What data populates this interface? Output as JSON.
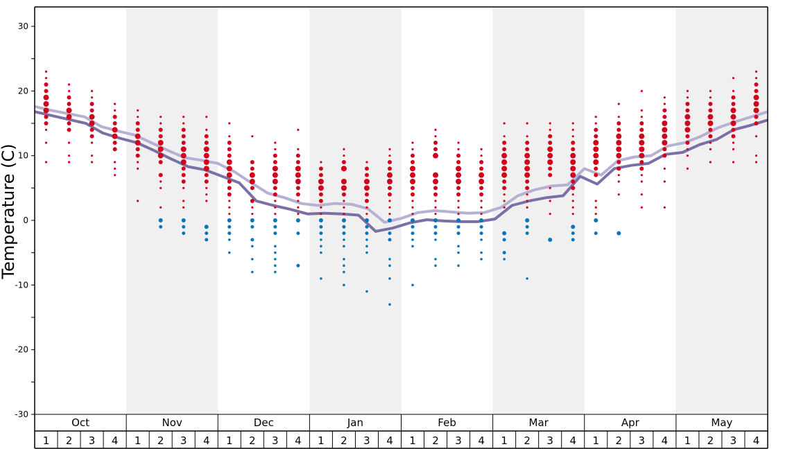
{
  "chart_data": {
    "type": "scatter",
    "ylabel": "Temperature (C)",
    "ylim": [
      -30,
      30
    ],
    "y_ticks": [
      "30",
      "20",
      "10",
      "0",
      "-10",
      "-20",
      "-30"
    ],
    "months": [
      "Oct",
      "Nov",
      "Dec",
      "Jan",
      "Feb",
      "Mar",
      "Apr",
      "May"
    ],
    "weeks": [
      "1",
      "2",
      "3",
      "4"
    ],
    "colors": {
      "warm": "#d0021b",
      "cold": "#0a74b8",
      "line_dark": "#7b6fa6",
      "line_light": "#b6b0d2",
      "band": "#f0f0f0"
    },
    "series": [
      {
        "color": "#b6b0d2",
        "values": [
          17.6,
          17.0,
          16.5,
          16.0,
          14.5,
          13.8,
          13.2,
          12.0,
          10.8,
          9.7,
          9.3,
          8.8,
          7.5,
          5.8,
          4.2,
          3.5,
          2.6,
          2.3,
          2.6,
          2.5,
          1.8,
          -0.3,
          0.3,
          1.2,
          1.5,
          1.3,
          1.1,
          1.2,
          2.0,
          3.8,
          4.7,
          5.3,
          5.5,
          8.0,
          7.0,
          9.2,
          9.8,
          10.0,
          11.5,
          12.0,
          13.0,
          14.3,
          15.2,
          16.0,
          16.8
        ]
      },
      {
        "color": "#7b6fa6",
        "values": [
          16.8,
          16.2,
          15.6,
          15.0,
          13.5,
          12.7,
          12.0,
          10.8,
          9.5,
          8.3,
          7.8,
          6.8,
          5.8,
          3.0,
          2.3,
          1.7,
          1.0,
          1.1,
          1.0,
          0.8,
          -1.7,
          -1.2,
          -0.4,
          0.1,
          -0.1,
          -0.2,
          -0.2,
          0.2,
          2.3,
          3.0,
          3.5,
          3.8,
          6.8,
          5.6,
          8.0,
          8.5,
          8.8,
          10.2,
          10.5,
          11.7,
          12.5,
          14.0,
          14.7,
          15.5
        ]
      }
    ],
    "dots_warm": [
      [
        9,
        12,
        14,
        15,
        16,
        17,
        18,
        19,
        20,
        21,
        22,
        23
      ],
      [
        9,
        10,
        12,
        14,
        15,
        16,
        17,
        18,
        19,
        20,
        21
      ],
      [
        9,
        10,
        12,
        13,
        14,
        15,
        16,
        17,
        18,
        19,
        20
      ],
      [
        7,
        8,
        9,
        11,
        12,
        13,
        14,
        15,
        16,
        17,
        18
      ],
      [
        3,
        8,
        9,
        10,
        11,
        12,
        13,
        14,
        15,
        16,
        17
      ],
      [
        2,
        5,
        6,
        7,
        9,
        10,
        11,
        12,
        13,
        14,
        15,
        16
      ],
      [
        2,
        3,
        5,
        6,
        7,
        8,
        9,
        10,
        11,
        12,
        13,
        14,
        15,
        16
      ],
      [
        3,
        4,
        5,
        6,
        7,
        8,
        9,
        10,
        11,
        12,
        13,
        14,
        16
      ],
      [
        1,
        2,
        3,
        4,
        5,
        6,
        7,
        8,
        9,
        10,
        11,
        12,
        13,
        15
      ],
      [
        1,
        2,
        3,
        5,
        6,
        7,
        8,
        9,
        13
      ],
      [
        1,
        2,
        3,
        4,
        5,
        6,
        7,
        8,
        9,
        10,
        11,
        12
      ],
      [
        1,
        2,
        3,
        4,
        5,
        6,
        7,
        8,
        9,
        10,
        11,
        14
      ],
      [
        1,
        2,
        3,
        4,
        5,
        6,
        7,
        8,
        9
      ],
      [
        1,
        2,
        3,
        4,
        5,
        6,
        8,
        9,
        10,
        11
      ],
      [
        1,
        2,
        3,
        4,
        5,
        6,
        7,
        8,
        9
      ],
      [
        1,
        2,
        3,
        4,
        5,
        6,
        7,
        8,
        9,
        10,
        11
      ],
      [
        1,
        2,
        3,
        4,
        5,
        6,
        7,
        8,
        9,
        10,
        11,
        12
      ],
      [
        1,
        2,
        3,
        4,
        5,
        6,
        7,
        10,
        11,
        12,
        13,
        14
      ],
      [
        1,
        2,
        3,
        4,
        5,
        6,
        7,
        8,
        9,
        10,
        11,
        12
      ],
      [
        1,
        2,
        3,
        4,
        5,
        6,
        7,
        8,
        9,
        10,
        11
      ],
      [
        2,
        3,
        4,
        5,
        6,
        7,
        8,
        9,
        10,
        11,
        12,
        13,
        15
      ],
      [
        2,
        3,
        4,
        5,
        6,
        7,
        8,
        9,
        10,
        11,
        12,
        13,
        15
      ],
      [
        1,
        3,
        5,
        7,
        8,
        9,
        10,
        11,
        12,
        13,
        14,
        15
      ],
      [
        1,
        2,
        3,
        4,
        5,
        6,
        7,
        8,
        9,
        10,
        11,
        12,
        13,
        14,
        15
      ],
      [
        1,
        2,
        3,
        7,
        8,
        9,
        10,
        11,
        12,
        13,
        14,
        15,
        16
      ],
      [
        4,
        6,
        7,
        8,
        9,
        10,
        11,
        12,
        13,
        14,
        15,
        16,
        18
      ],
      [
        2,
        4,
        6,
        7,
        8,
        9,
        10,
        11,
        12,
        13,
        14,
        15,
        16,
        17,
        20
      ],
      [
        2,
        6,
        8,
        10,
        11,
        12,
        13,
        14,
        15,
        16,
        17,
        18,
        19
      ],
      [
        8,
        10,
        11,
        12,
        13,
        14,
        15,
        16,
        17,
        18,
        19,
        20
      ],
      [
        9,
        11,
        12,
        13,
        14,
        15,
        16,
        17,
        18,
        19,
        20
      ],
      [
        9,
        11,
        12,
        13,
        14,
        15,
        16,
        17,
        18,
        19,
        20,
        22
      ],
      [
        9,
        10,
        13,
        15,
        16,
        17,
        18,
        19,
        20,
        21,
        22,
        23
      ]
    ],
    "dots_cold": [
      [],
      [],
      [],
      [],
      [],
      [
        0,
        -1
      ],
      [
        0,
        -1,
        -2
      ],
      [
        -1,
        -2,
        -3
      ],
      [
        0,
        -1,
        -2,
        -3,
        -5
      ],
      [
        0,
        -1,
        -3,
        -4,
        -6,
        -8
      ],
      [
        0,
        -1,
        -2,
        -4,
        -5,
        -6,
        -7,
        -8
      ],
      [
        0,
        -2,
        -7
      ],
      [
        0,
        -1,
        -2,
        -3,
        -4,
        -5,
        -9
      ],
      [
        0,
        -1,
        -2,
        -3,
        -4,
        -6,
        -7,
        -8,
        -10
      ],
      [
        0,
        -1,
        -2,
        -3,
        -4,
        -5,
        -11
      ],
      [
        0,
        -2,
        -3,
        -6,
        -7,
        -9,
        -13
      ],
      [
        0,
        -1,
        -2,
        -3,
        -4,
        -10
      ],
      [
        0,
        -1,
        -2,
        -3,
        -6,
        -7
      ],
      [
        0,
        -1,
        -2,
        -4,
        -5,
        -7
      ],
      [
        0,
        -1,
        -2,
        -3,
        -5,
        -6
      ],
      [
        -2,
        -3,
        -5,
        -6
      ],
      [
        0,
        -1,
        -2,
        -9
      ],
      [
        -3
      ],
      [
        -1,
        -2,
        -3
      ],
      [
        0,
        -2
      ],
      [
        -2
      ],
      [],
      [],
      [],
      [],
      [],
      []
    ]
  }
}
